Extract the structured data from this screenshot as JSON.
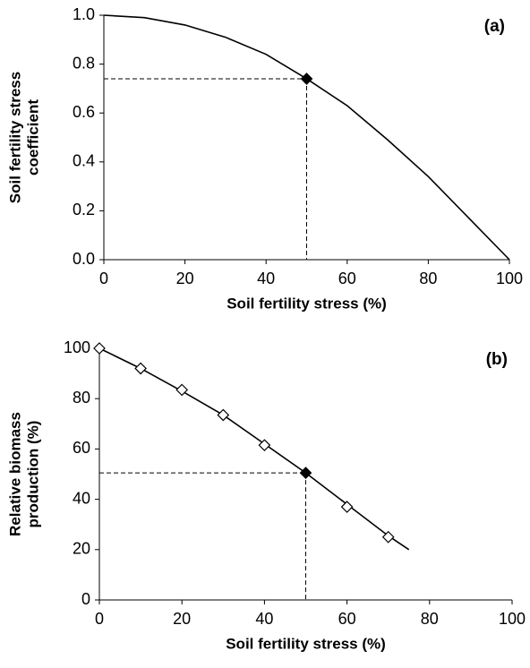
{
  "chart_data": [
    {
      "type": "line",
      "annotation": "(a)",
      "xlabel": "Soil fertility stress (%)",
      "ylabel": [
        "Soil fertility stress",
        "coefficient"
      ],
      "xlim": [
        0,
        100
      ],
      "xticks": [
        0,
        20,
        40,
        60,
        80,
        100
      ],
      "ylim": [
        0,
        1
      ],
      "yticks": [
        {
          "value": 0,
          "label": "0.0"
        },
        {
          "value": 0.2,
          "label": "0.2"
        },
        {
          "value": 0.4,
          "label": "0.4"
        },
        {
          "value": 0.6,
          "label": "0.6"
        },
        {
          "value": 0.8,
          "label": "0.8"
        },
        {
          "value": 1,
          "label": "1.0"
        }
      ],
      "series": [
        {
          "style": "line",
          "color": "#000000",
          "x": [
            0,
            10,
            20,
            30,
            40,
            50,
            60,
            70,
            80,
            90,
            100
          ],
          "values": [
            1.0,
            0.99,
            0.96,
            0.91,
            0.84,
            0.74,
            0.63,
            0.49,
            0.34,
            0.17,
            0.0
          ]
        },
        {
          "style": "filled-diamond",
          "guides": true,
          "color": "#000000",
          "x": [
            50
          ],
          "values": [
            0.74
          ]
        }
      ]
    },
    {
      "type": "line",
      "annotation": "(b)",
      "xlabel": "Soil fertility stress (%)",
      "ylabel": [
        "Relative biomass",
        "production (%)"
      ],
      "xlim": [
        0,
        100
      ],
      "xticks": [
        0,
        20,
        40,
        60,
        80,
        100
      ],
      "ylim": [
        0,
        100
      ],
      "yticks": [
        0,
        20,
        40,
        60,
        80,
        100
      ],
      "series": [
        {
          "style": "line",
          "color": "#000000",
          "x": [
            0,
            10,
            20,
            30,
            40,
            50,
            60,
            70,
            75
          ],
          "values": [
            100,
            92,
            83,
            73.5,
            62,
            50.5,
            38,
            25.5,
            20
          ]
        },
        {
          "style": "open-diamond",
          "color": "#000000",
          "x": [
            0,
            10,
            20,
            30,
            40,
            60,
            70
          ],
          "values": [
            100,
            92,
            83.5,
            73.5,
            61.5,
            37,
            25
          ]
        },
        {
          "style": "filled-diamond",
          "guides": true,
          "color": "#000000",
          "x": [
            50
          ],
          "values": [
            50.5
          ]
        }
      ]
    }
  ]
}
